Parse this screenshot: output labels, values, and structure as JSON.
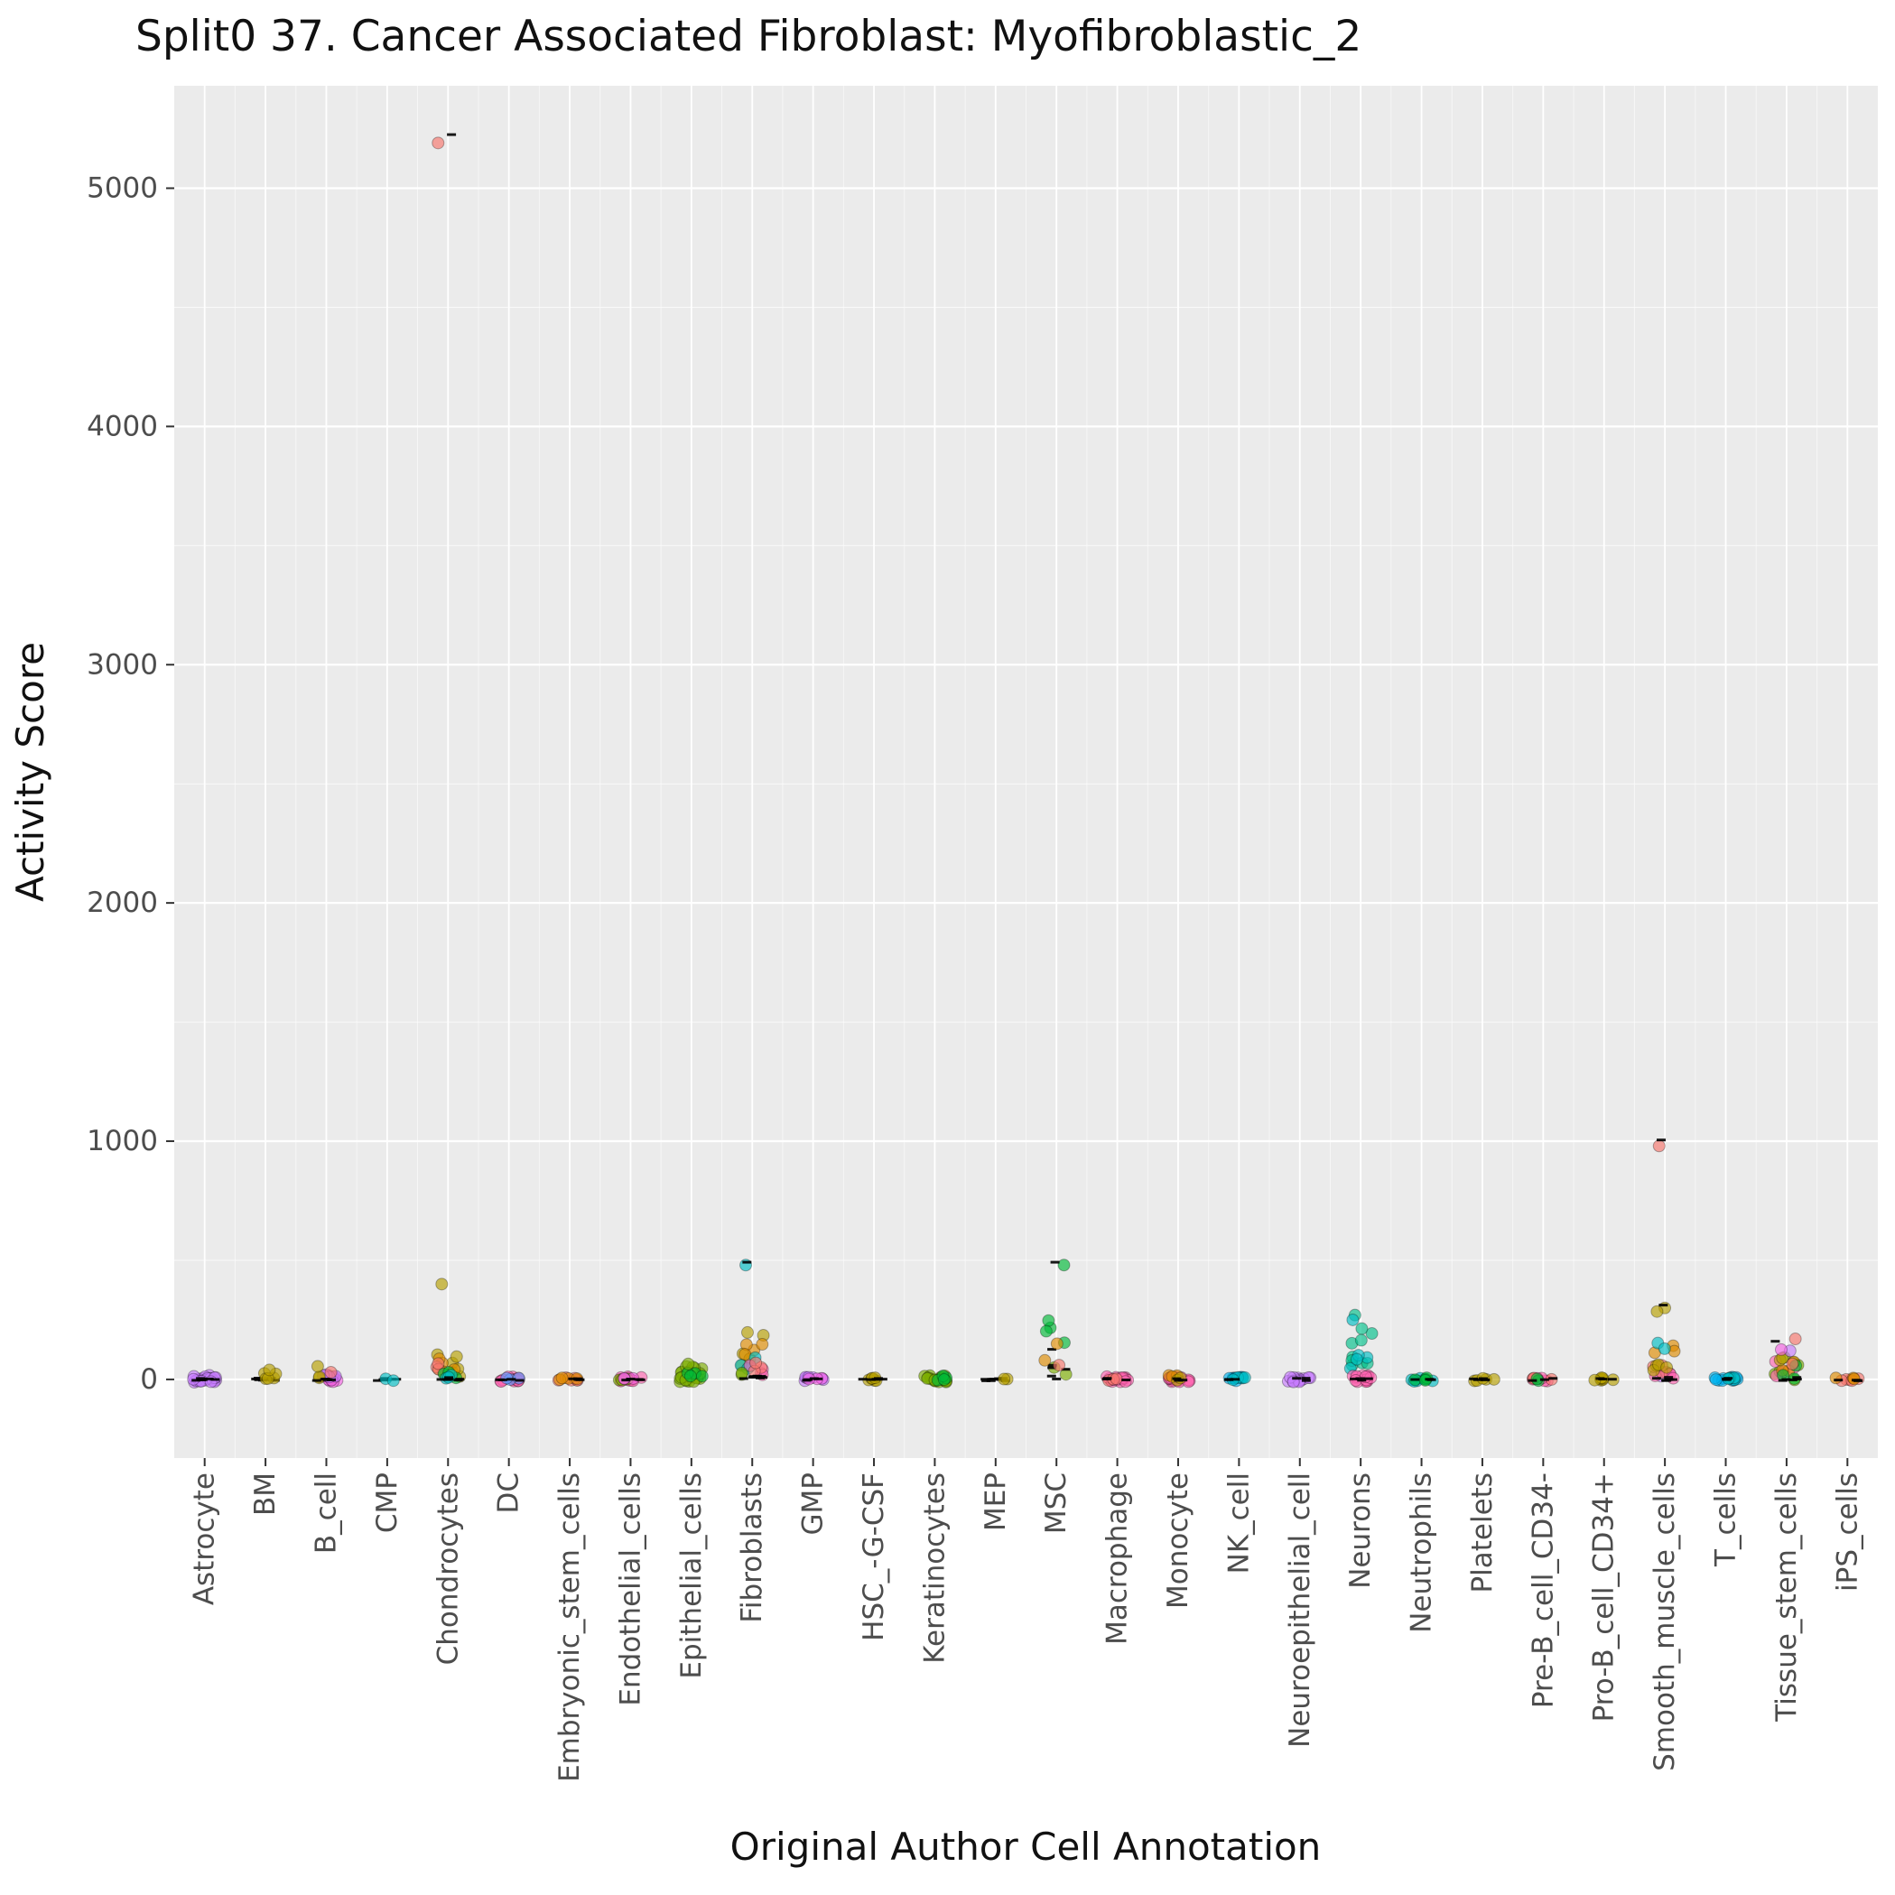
{
  "chart_data": {
    "type": "scatter",
    "subtype": "strip-jitter",
    "title": "Split0 37. Cancer Associated Fibroblast: Myofibroblastic_2",
    "xlabel": "Original Author Cell Annotation",
    "ylabel": "Activity Score",
    "y_ticks": [
      0,
      1000,
      2000,
      3000,
      4000,
      5000
    ],
    "ylim": [
      -330,
      5430
    ],
    "grid": "on",
    "legend": "none",
    "panel_background": "#EBEBEB",
    "grid_color": "#FFFFFF",
    "tick_color": "#333333",
    "tick_label_color": "#4D4D4D",
    "palette": {
      "salmon": "#F8766D",
      "orange": "#DE8C00",
      "olive": "#B79F00",
      "green": "#7CAE00",
      "darkgreen": "#00BA38",
      "seagreen": "#00C08B",
      "teal": "#00BFC4",
      "lightblue": "#00B4F0",
      "blue": "#619CFF",
      "purple": "#C77CFF",
      "violet": "#F564E3",
      "magenta": "#FF64B0",
      "black": "#000000"
    },
    "categories": [
      {
        "label": "Astrocyte",
        "clusters": [
          [
            "purple",
            22,
            -12,
            18
          ],
          [
            "black",
            6,
            -5,
            5
          ]
        ],
        "outliers": []
      },
      {
        "label": "BM",
        "clusters": [
          [
            "black",
            10,
            -5,
            8
          ],
          [
            "olive",
            5,
            -5,
            30
          ]
        ],
        "outliers": [
          [
            40,
            "olive"
          ]
        ]
      },
      {
        "label": "B_cell",
        "clusters": [
          [
            "violet",
            9,
            -10,
            20
          ],
          [
            "purple",
            5,
            0,
            25
          ],
          [
            "olive",
            2,
            5,
            20
          ],
          [
            "black",
            5,
            -5,
            5
          ]
        ],
        "outliers": [
          [
            55,
            "olive"
          ],
          [
            30,
            "salmon"
          ]
        ]
      },
      {
        "label": "CMP",
        "clusters": [
          [
            "black",
            8,
            -5,
            5
          ],
          [
            "teal",
            2,
            -8,
            5
          ]
        ],
        "outliers": []
      },
      {
        "label": "Chondrocytes",
        "clusters": [
          [
            "olive",
            8,
            10,
            110
          ],
          [
            "orange",
            4,
            30,
            90
          ],
          [
            "salmon",
            3,
            40,
            100
          ],
          [
            "darkgreen",
            3,
            0,
            30
          ],
          [
            "teal",
            3,
            0,
            25
          ],
          [
            "black",
            6,
            -5,
            10
          ]
        ],
        "outliers": [
          [
            400,
            "olive"
          ],
          [
            5190,
            "salmon"
          ],
          [
            5225,
            "black"
          ]
        ]
      },
      {
        "label": "DC",
        "clusters": [
          [
            "magenta",
            12,
            -10,
            12
          ],
          [
            "blue",
            3,
            -5,
            8
          ],
          [
            "black",
            4,
            -5,
            5
          ]
        ],
        "outliers": []
      },
      {
        "label": "Embryonic_stem_cells",
        "clusters": [
          [
            "salmon",
            6,
            -8,
            10
          ],
          [
            "orange",
            4,
            -5,
            12
          ],
          [
            "black",
            4,
            -5,
            5
          ]
        ],
        "outliers": []
      },
      {
        "label": "Endothelial_cells",
        "clusters": [
          [
            "magenta",
            10,
            -10,
            12
          ],
          [
            "green",
            3,
            -5,
            10
          ],
          [
            "violet",
            3,
            0,
            10
          ],
          [
            "black",
            4,
            -5,
            5
          ]
        ],
        "outliers": []
      },
      {
        "label": "Epithelial_cells",
        "clusters": [
          [
            "green",
            22,
            -10,
            55
          ],
          [
            "darkgreen",
            4,
            0,
            40
          ]
        ],
        "outliers": [
          [
            65,
            "green"
          ]
        ]
      },
      {
        "label": "Fibroblasts",
        "clusters": [
          [
            "olive",
            5,
            40,
            230
          ],
          [
            "orange",
            4,
            80,
            170
          ],
          [
            "teal",
            4,
            30,
            120
          ],
          [
            "magenta",
            4,
            10,
            60
          ],
          [
            "salmon",
            3,
            20,
            80
          ],
          [
            "green",
            2,
            0,
            30
          ],
          [
            "black",
            8,
            -5,
            15
          ]
        ],
        "outliers": [
          [
            480,
            "teal"
          ],
          [
            492,
            "black"
          ]
        ]
      },
      {
        "label": "GMP",
        "clusters": [
          [
            "purple",
            7,
            -8,
            10
          ],
          [
            "violet",
            3,
            -5,
            8
          ],
          [
            "black",
            4,
            -5,
            5
          ]
        ],
        "outliers": []
      },
      {
        "label": "HSC_-G-CSF",
        "clusters": [
          [
            "olive",
            6,
            -6,
            8
          ],
          [
            "black",
            6,
            -5,
            5
          ]
        ],
        "outliers": []
      },
      {
        "label": "Keratinocytes",
        "clusters": [
          [
            "green",
            18,
            -12,
            18
          ],
          [
            "darkgreen",
            4,
            -5,
            15
          ]
        ],
        "outliers": []
      },
      {
        "label": "MEP",
        "clusters": [
          [
            "black",
            9,
            -6,
            6
          ],
          [
            "olive",
            2,
            -5,
            8
          ]
        ],
        "outliers": []
      },
      {
        "label": "MSC",
        "clusters": [
          [
            "darkgreen",
            4,
            140,
            260
          ],
          [
            "green",
            2,
            20,
            60
          ],
          [
            "black",
            6,
            0,
            130
          ]
        ],
        "outliers": [
          [
            480,
            "darkgreen"
          ],
          [
            492,
            "black"
          ],
          [
            150,
            "orange"
          ],
          [
            80,
            "orange"
          ],
          [
            60,
            "salmon"
          ]
        ]
      },
      {
        "label": "Macrophage",
        "clusters": [
          [
            "magenta",
            16,
            -12,
            12
          ],
          [
            "salmon",
            3,
            -5,
            10
          ],
          [
            "black",
            3,
            -5,
            5
          ]
        ],
        "outliers": []
      },
      {
        "label": "Monocyte",
        "clusters": [
          [
            "magenta",
            14,
            -10,
            12
          ],
          [
            "orange",
            3,
            8,
            25
          ],
          [
            "olive",
            2,
            -5,
            10
          ],
          [
            "black",
            3,
            -5,
            5
          ]
        ],
        "outliers": []
      },
      {
        "label": "NK_cell",
        "clusters": [
          [
            "lightblue",
            8,
            -8,
            10
          ],
          [
            "teal",
            4,
            -5,
            8
          ],
          [
            "black",
            3,
            -5,
            5
          ]
        ],
        "outliers": []
      },
      {
        "label": "Neuroepithelial_cell",
        "clusters": [
          [
            "purple",
            14,
            -12,
            12
          ],
          [
            "black",
            3,
            -5,
            5
          ]
        ],
        "outliers": []
      },
      {
        "label": "Neurons",
        "clusters": [
          [
            "seagreen",
            9,
            60,
            230
          ],
          [
            "teal",
            4,
            30,
            120
          ],
          [
            "magenta",
            14,
            -12,
            18
          ],
          [
            "black",
            4,
            -5,
            5
          ]
        ],
        "outliers": [
          [
            270,
            "seagreen"
          ],
          [
            250,
            "teal"
          ]
        ]
      },
      {
        "label": "Neutrophils",
        "clusters": [
          [
            "teal",
            6,
            -8,
            8
          ],
          [
            "darkgreen",
            4,
            -5,
            8
          ],
          [
            "black",
            3,
            -5,
            5
          ]
        ],
        "outliers": []
      },
      {
        "label": "Platelets",
        "clusters": [
          [
            "olive",
            5,
            -6,
            6
          ],
          [
            "black",
            4,
            -5,
            5
          ]
        ],
        "outliers": []
      },
      {
        "label": "Pre-B_cell_CD34-",
        "clusters": [
          [
            "magenta",
            5,
            -8,
            8
          ],
          [
            "salmon",
            3,
            -5,
            8
          ],
          [
            "darkgreen",
            2,
            -5,
            5
          ],
          [
            "black",
            3,
            -5,
            5
          ]
        ],
        "outliers": []
      },
      {
        "label": "Pro-B_cell_CD34+",
        "clusters": [
          [
            "olive",
            7,
            -6,
            8
          ],
          [
            "black",
            3,
            -5,
            5
          ]
        ],
        "outliers": []
      },
      {
        "label": "Smooth_muscle_cells",
        "clusters": [
          [
            "purple",
            4,
            10,
            80
          ],
          [
            "magenta",
            5,
            -5,
            45
          ],
          [
            "salmon",
            3,
            15,
            60
          ],
          [
            "olive",
            4,
            30,
            95
          ],
          [
            "orange",
            3,
            95,
            150
          ],
          [
            "teal",
            2,
            120,
            160
          ],
          [
            "black",
            6,
            -5,
            10
          ]
        ],
        "outliers": [
          [
            980,
            "salmon"
          ],
          [
            1005,
            "black"
          ],
          [
            300,
            "olive"
          ],
          [
            285,
            "olive"
          ],
          [
            312,
            "black"
          ]
        ]
      },
      {
        "label": "T_cells",
        "clusters": [
          [
            "lightblue",
            10,
            -8,
            10
          ],
          [
            "teal",
            5,
            -5,
            8
          ],
          [
            "black",
            3,
            -5,
            5
          ]
        ],
        "outliers": []
      },
      {
        "label": "Tissue_stem_cells",
        "clusters": [
          [
            "green",
            7,
            -5,
            100
          ],
          [
            "magenta",
            4,
            10,
            80
          ],
          [
            "orange",
            3,
            30,
            90
          ],
          [
            "darkgreen",
            3,
            0,
            60
          ],
          [
            "olive",
            2,
            60,
            105
          ],
          [
            "black",
            5,
            -5,
            10
          ]
        ],
        "outliers": [
          [
            170,
            "salmon"
          ],
          [
            160,
            "black"
          ],
          [
            120,
            "purple"
          ],
          [
            125,
            "violet"
          ],
          [
            65,
            "salmon"
          ]
        ]
      },
      {
        "label": "iPS_cells",
        "clusters": [
          [
            "salmon",
            5,
            -6,
            8
          ],
          [
            "orange",
            3,
            -5,
            8
          ],
          [
            "black",
            4,
            -5,
            5
          ]
        ],
        "outliers": []
      }
    ]
  }
}
